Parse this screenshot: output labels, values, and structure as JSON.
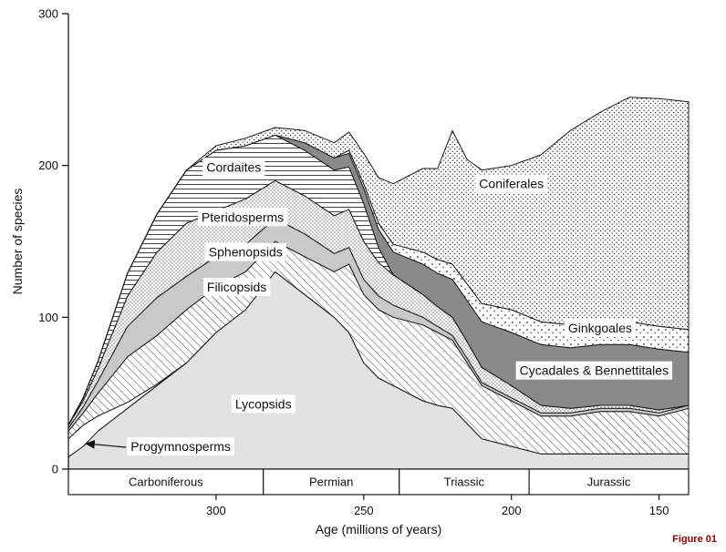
{
  "figure": {
    "caption": "Figure 01"
  },
  "colors": {
    "axis": "#1a1a1a",
    "text": "#111111",
    "caption": "#8b0000",
    "light_gray": "#e2e2e2",
    "mid_gray": "#c9c9c9",
    "dark_gray": "#8a8a8a",
    "white": "#ffffff"
  },
  "chart_data": {
    "type": "area",
    "stacked": true,
    "title": "",
    "xlabel": "Age (millions of years)",
    "ylabel": "Number of species",
    "x_axis_reversed": true,
    "xlim": [
      350,
      140
    ],
    "ylim": [
      0,
      300
    ],
    "x_ticks": [
      300,
      250,
      200,
      150
    ],
    "y_ticks": [
      0,
      100,
      200,
      300
    ],
    "grid": false,
    "legend_position": "none",
    "x": [
      350,
      345,
      340,
      330,
      320,
      310,
      300,
      290,
      280,
      270,
      260,
      255,
      250,
      245,
      240,
      230,
      225,
      220,
      215,
      210,
      200,
      190,
      180,
      170,
      160,
      150,
      140
    ],
    "series": [
      {
        "name": "Lycopsids",
        "fill": "light-gray",
        "values": [
          8,
          15,
          25,
          40,
          55,
          70,
          90,
          105,
          130,
          115,
          100,
          90,
          70,
          60,
          55,
          45,
          42,
          40,
          30,
          20,
          15,
          10,
          10,
          10,
          10,
          10,
          10
        ]
      },
      {
        "name": "Progymnosperms",
        "fill": "white",
        "values": [
          12,
          14,
          10,
          4,
          1,
          0,
          0,
          0,
          0,
          0,
          0,
          0,
          0,
          0,
          0,
          0,
          0,
          0,
          0,
          0,
          0,
          0,
          0,
          0,
          0,
          0,
          0
        ]
      },
      {
        "name": "Filicopsids",
        "fill": "diagonal-hatch",
        "values": [
          5,
          8,
          15,
          30,
          32,
          35,
          30,
          25,
          20,
          25,
          30,
          45,
          45,
          45,
          45,
          50,
          48,
          45,
          40,
          35,
          30,
          25,
          25,
          28,
          28,
          25,
          30
        ]
      },
      {
        "name": "Sphenopsids",
        "fill": "mid-gray",
        "values": [
          2,
          4,
          8,
          20,
          25,
          22,
          20,
          18,
          15,
          15,
          12,
          11,
          10,
          9,
          8,
          5,
          4,
          3,
          3,
          2,
          2,
          2,
          2,
          2,
          2,
          2,
          2
        ]
      },
      {
        "name": "Pteridosperms",
        "fill": "fine-dots",
        "values": [
          2,
          4,
          8,
          20,
          30,
          35,
          30,
          30,
          25,
          25,
          25,
          25,
          25,
          22,
          20,
          15,
          13,
          12,
          11,
          10,
          8,
          5,
          3,
          2,
          2,
          2,
          0
        ]
      },
      {
        "name": "Cordaites",
        "fill": "horizontal-lines",
        "values": [
          0,
          2,
          5,
          15,
          25,
          35,
          40,
          35,
          30,
          30,
          30,
          28,
          25,
          10,
          0,
          0,
          0,
          0,
          0,
          0,
          0,
          0,
          0,
          0,
          0,
          0,
          0
        ]
      },
      {
        "name": "Cycadales & Bennettitales",
        "fill": "dark-gray",
        "values": [
          0,
          0,
          0,
          0,
          0,
          0,
          0,
          0,
          0,
          5,
          8,
          9,
          10,
          12,
          15,
          20,
          22,
          25,
          27,
          30,
          35,
          40,
          40,
          40,
          40,
          40,
          35
        ]
      },
      {
        "name": "Ginkgoales",
        "fill": "sparse-dots",
        "values": [
          0,
          0,
          0,
          0,
          0,
          0,
          0,
          0,
          0,
          0,
          0,
          2,
          3,
          4,
          5,
          8,
          9,
          10,
          11,
          12,
          15,
          15,
          15,
          15,
          15,
          15,
          15
        ]
      },
      {
        "name": "Coniferales",
        "fill": "dense-dots",
        "values": [
          0,
          0,
          0,
          0,
          0,
          0,
          3,
          5,
          5,
          8,
          10,
          12,
          20,
          30,
          40,
          55,
          60,
          88,
          82,
          88,
          95,
          110,
          128,
          138,
          148,
          150,
          150
        ]
      }
    ],
    "periods": [
      {
        "name": "Carboniferous",
        "from": 350,
        "to": 284
      },
      {
        "name": "Permian",
        "from": 284,
        "to": 238
      },
      {
        "name": "Triassic",
        "from": 238,
        "to": 194
      },
      {
        "name": "Jurassic",
        "from": 194,
        "to": 140
      }
    ],
    "annotations": [
      {
        "text": "Cordaites",
        "age": 294,
        "species": 196
      },
      {
        "text": "Pteridosperms",
        "age": 291,
        "species": 163
      },
      {
        "text": "Sphenopsids",
        "age": 290,
        "species": 140
      },
      {
        "text": "Filicopsids",
        "age": 293,
        "species": 117
      },
      {
        "text": "Lycopsids",
        "age": 284,
        "species": 40
      },
      {
        "text": "Progymnosperms",
        "age": 312,
        "species": 12,
        "arrow_to": {
          "age": 345,
          "species": 18
        }
      },
      {
        "text": "Coniferales",
        "age": 200,
        "species": 185
      },
      {
        "text": "Ginkgoales",
        "age": 170,
        "species": 90
      },
      {
        "text": "Cycadales & Bennettitales",
        "age": 172,
        "species": 62
      }
    ]
  }
}
